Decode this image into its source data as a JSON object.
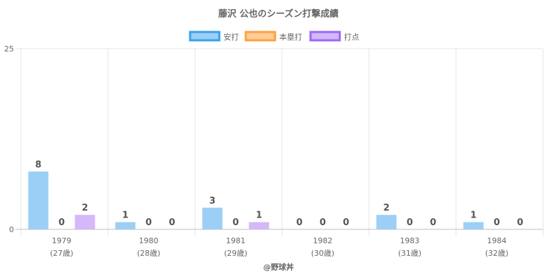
{
  "chart_data": {
    "type": "bar",
    "title": "藤沢 公也のシーズン打撃成績",
    "categories": [
      "1979",
      "1980",
      "1981",
      "1982",
      "1983",
      "1984"
    ],
    "category_sublabels": [
      "(27歳)",
      "(28歳)",
      "(29歳)",
      "(30歳)",
      "(31歳)",
      "(32歳)"
    ],
    "series": [
      {
        "name": "安打",
        "values": [
          8,
          1,
          3,
          0,
          2,
          1
        ],
        "color": "#9ccff5",
        "border": "#36a2eb"
      },
      {
        "name": "本塁打",
        "values": [
          0,
          0,
          0,
          0,
          0,
          0
        ],
        "color": "#ffcc99",
        "border": "#ff9f40"
      },
      {
        "name": "打点",
        "values": [
          2,
          0,
          1,
          0,
          0,
          0
        ],
        "color": "#d4b8f8",
        "border": "#9966ff"
      }
    ],
    "ylim": [
      0,
      25
    ],
    "yticks": [
      "0",
      "25"
    ],
    "legend_position": "top",
    "grid": true,
    "credit": "@野球丼"
  }
}
